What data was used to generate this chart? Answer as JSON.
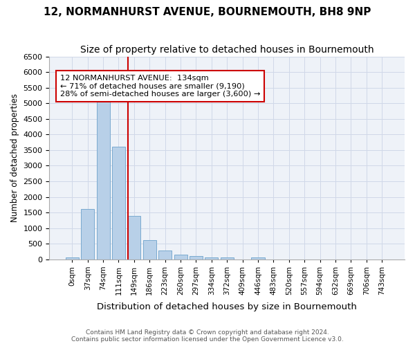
{
  "title": "12, NORMANHURST AVENUE, BOURNEMOUTH, BH8 9NP",
  "subtitle": "Size of property relative to detached houses in Bournemouth",
  "xlabel": "Distribution of detached houses by size in Bournemouth",
  "ylabel": "Number of detached properties",
  "footer_line1": "Contains HM Land Registry data © Crown copyright and database right 2024.",
  "footer_line2": "Contains public sector information licensed under the Open Government Licence v3.0.",
  "bin_labels": [
    "0sqm",
    "37sqm",
    "74sqm",
    "111sqm",
    "149sqm",
    "186sqm",
    "223sqm",
    "260sqm",
    "297sqm",
    "334sqm",
    "372sqm",
    "409sqm",
    "446sqm",
    "483sqm",
    "520sqm",
    "557sqm",
    "594sqm",
    "632sqm",
    "669sqm",
    "706sqm",
    "743sqm"
  ],
  "bar_values": [
    70,
    1620,
    5050,
    3600,
    1380,
    610,
    290,
    150,
    100,
    50,
    60,
    0,
    50,
    0,
    0,
    0,
    0,
    0,
    0,
    0,
    0
  ],
  "bar_color": "#b8d0e8",
  "bar_edge_color": "#7aaad0",
  "vline_color": "#cc0000",
  "annotation_box_text": "12 NORMANHURST AVENUE:  134sqm\n← 71% of detached houses are smaller (9,190)\n28% of semi-detached houses are larger (3,600) →",
  "annotation_box_color": "#cc0000",
  "annotation_box_facecolor": "white",
  "ylim": [
    0,
    6500
  ],
  "yticks": [
    0,
    500,
    1000,
    1500,
    2000,
    2500,
    3000,
    3500,
    4000,
    4500,
    5000,
    5500,
    6000,
    6500
  ],
  "grid_color": "#d0d8e8",
  "bg_color": "#eef2f8",
  "title_fontsize": 11,
  "subtitle_fontsize": 10
}
